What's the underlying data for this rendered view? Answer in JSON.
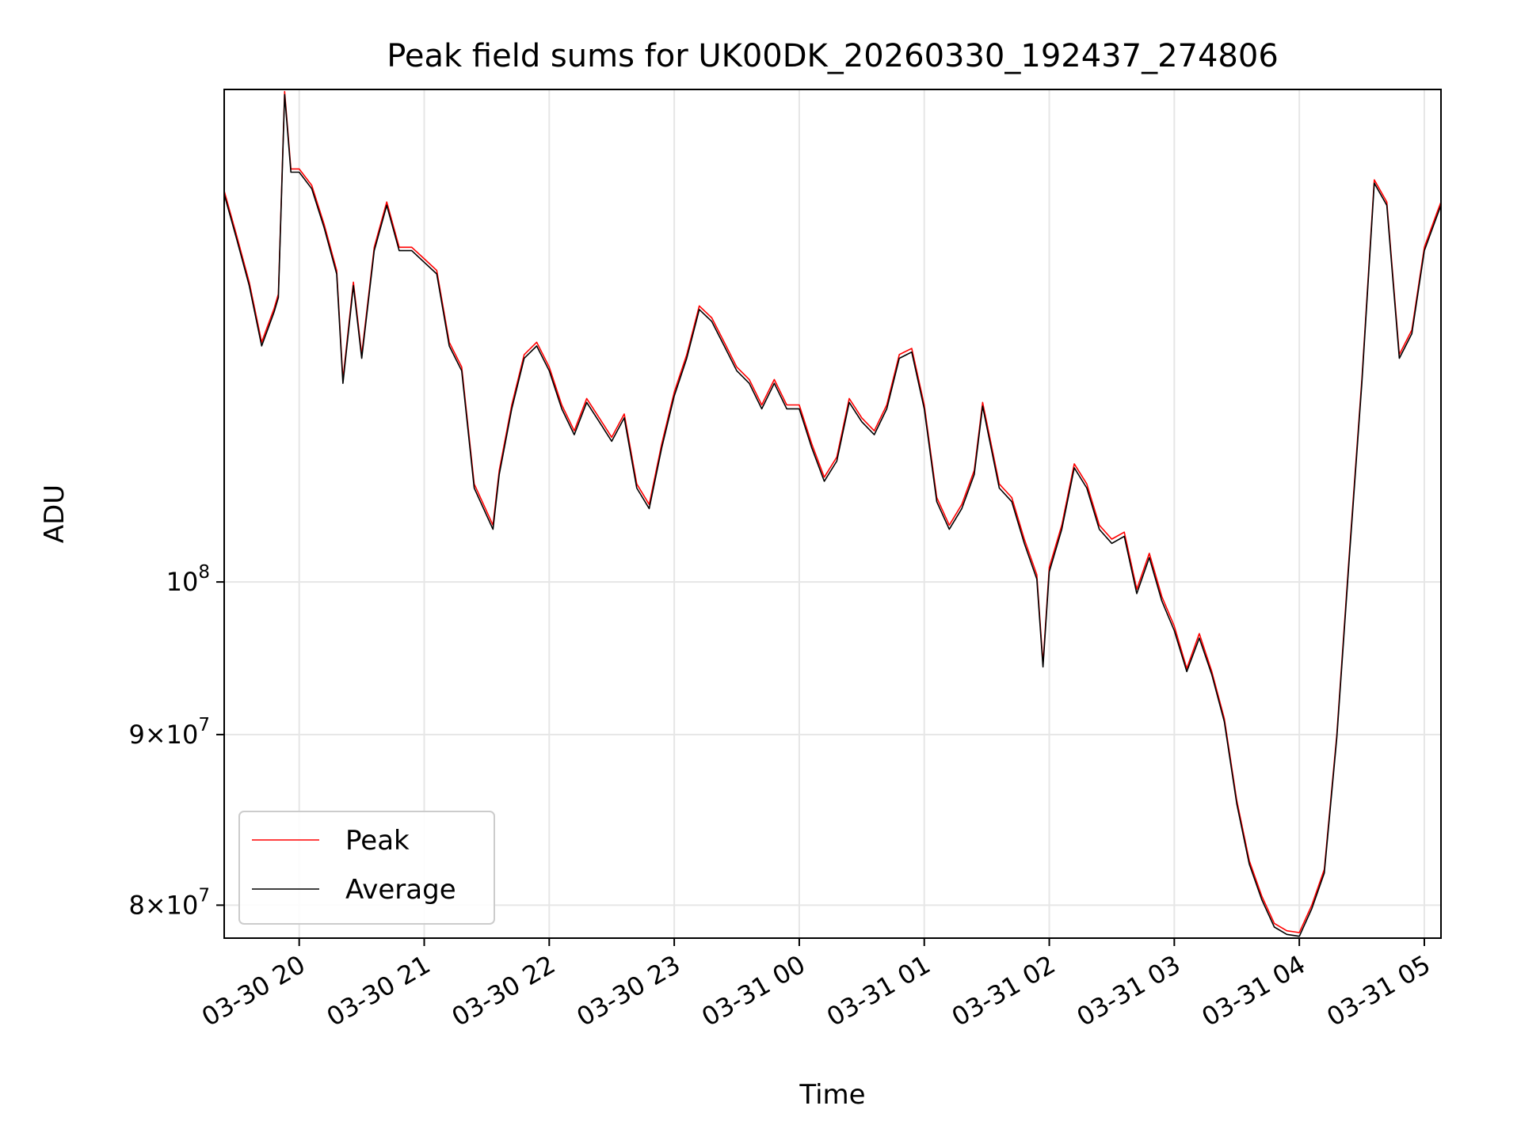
{
  "chart_data": {
    "type": "line",
    "title": "Peak field sums for UK00DK_20260330_192437_274806",
    "xlabel": "Time",
    "ylabel": "ADU",
    "yscale": "log",
    "grid": true,
    "legend_position": "lower-left",
    "x_tick_labels": [
      "03-30 20",
      "03-30 21",
      "03-30 22",
      "03-30 23",
      "03-31 00",
      "03-31 01",
      "03-31 02",
      "03-31 03",
      "03-31 04",
      "03-31 05"
    ],
    "y_ticks": [
      {
        "value": 80000000,
        "mantissa": "8",
        "base": "10",
        "exp": "7",
        "label": "8 × 10^7"
      },
      {
        "value": 90000000,
        "mantissa": "9",
        "base": "10",
        "exp": "7",
        "label": "9 × 10^7"
      },
      {
        "value": 100000000,
        "mantissa": "",
        "base": "10",
        "exp": "8",
        "label": "10^8"
      }
    ],
    "xlim": [
      "2026-03-30 19:24",
      "2026-03-31 05:08"
    ],
    "ylim": [
      78200000,
      140500000
    ],
    "colors": {
      "Peak": "#ff0000",
      "Average": "#000000"
    },
    "series": [
      {
        "name": "Peak",
        "points": [
          [
            "2026-03-30 19:24",
            131.0
          ],
          [
            "2026-03-30 19:30",
            127.0
          ],
          [
            "2026-03-30 19:36",
            123.0
          ],
          [
            "2026-03-30 19:42",
            118.0
          ],
          [
            "2026-03-30 19:48",
            120.8
          ],
          [
            "2026-03-30 19:50",
            122.0
          ],
          [
            "2026-03-30 19:53",
            140.3
          ],
          [
            "2026-03-30 19:56",
            133.0
          ],
          [
            "2026-03-30 20:00",
            133.0
          ],
          [
            "2026-03-30 20:06",
            131.5
          ],
          [
            "2026-03-30 20:12",
            128.0
          ],
          [
            "2026-03-30 20:18",
            124.0
          ],
          [
            "2026-03-30 20:21",
            115.0
          ],
          [
            "2026-03-30 20:26",
            123.0
          ],
          [
            "2026-03-30 20:30",
            117.0
          ],
          [
            "2026-03-30 20:36",
            126.0
          ],
          [
            "2026-03-30 20:42",
            130.0
          ],
          [
            "2026-03-30 20:48",
            126.0
          ],
          [
            "2026-03-30 20:54",
            126.0
          ],
          [
            "2026-03-30 21:00",
            125.0
          ],
          [
            "2026-03-30 21:06",
            124.0
          ],
          [
            "2026-03-30 21:12",
            118.0
          ],
          [
            "2026-03-30 21:18",
            116.0
          ],
          [
            "2026-03-30 21:24",
            107.0
          ],
          [
            "2026-03-30 21:33",
            104.0
          ],
          [
            "2026-03-30 21:36",
            108.0
          ],
          [
            "2026-03-30 21:42",
            113.0
          ],
          [
            "2026-03-30 21:48",
            117.0
          ],
          [
            "2026-03-30 21:54",
            118.0
          ],
          [
            "2026-03-30 22:00",
            116.0
          ],
          [
            "2026-03-30 22:06",
            113.0
          ],
          [
            "2026-03-30 22:12",
            111.0
          ],
          [
            "2026-03-30 22:18",
            113.5
          ],
          [
            "2026-03-30 22:24",
            112.0
          ],
          [
            "2026-03-30 22:30",
            110.5
          ],
          [
            "2026-03-30 22:36",
            112.3
          ],
          [
            "2026-03-30 22:42",
            107.0
          ],
          [
            "2026-03-30 22:48",
            105.5
          ],
          [
            "2026-03-30 22:54",
            110.0
          ],
          [
            "2026-03-30 23:00",
            114.0
          ],
          [
            "2026-03-30 23:06",
            117.0
          ],
          [
            "2026-03-30 23:12",
            121.0
          ],
          [
            "2026-03-30 23:18",
            120.0
          ],
          [
            "2026-03-30 23:24",
            118.0
          ],
          [
            "2026-03-30 23:30",
            116.0
          ],
          [
            "2026-03-30 23:36",
            115.0
          ],
          [
            "2026-03-30 23:42",
            113.0
          ],
          [
            "2026-03-30 23:48",
            115.0
          ],
          [
            "2026-03-30 23:54",
            113.0
          ],
          [
            "2026-03-31 00:00",
            113.0
          ],
          [
            "2026-03-31 00:06",
            110.0
          ],
          [
            "2026-03-31 00:12",
            107.5
          ],
          [
            "2026-03-31 00:18",
            109.0
          ],
          [
            "2026-03-31 00:24",
            113.5
          ],
          [
            "2026-03-31 00:30",
            112.0
          ],
          [
            "2026-03-31 00:36",
            111.0
          ],
          [
            "2026-03-31 00:42",
            113.0
          ],
          [
            "2026-03-31 00:48",
            117.0
          ],
          [
            "2026-03-31 00:54",
            117.5
          ],
          [
            "2026-03-31 01:00",
            113.0
          ],
          [
            "2026-03-31 01:06",
            106.0
          ],
          [
            "2026-03-31 01:12",
            104.0
          ],
          [
            "2026-03-31 01:18",
            105.5
          ],
          [
            "2026-03-31 01:24",
            108.0
          ],
          [
            "2026-03-31 01:28",
            113.2
          ],
          [
            "2026-03-31 01:36",
            107.0
          ],
          [
            "2026-03-31 01:42",
            106.0
          ],
          [
            "2026-03-31 01:48",
            103.0
          ],
          [
            "2026-03-31 01:54",
            100.5
          ],
          [
            "2026-03-31 01:57",
            94.5
          ],
          [
            "2026-03-31 02:00",
            101.0
          ],
          [
            "2026-03-31 02:06",
            104.0
          ],
          [
            "2026-03-31 02:12",
            108.5
          ],
          [
            "2026-03-31 02:18",
            107.0
          ],
          [
            "2026-03-31 02:24",
            104.0
          ],
          [
            "2026-03-31 02:30",
            103.0
          ],
          [
            "2026-03-31 02:36",
            103.5
          ],
          [
            "2026-03-31 02:42",
            99.5
          ],
          [
            "2026-03-31 02:48",
            102.0
          ],
          [
            "2026-03-31 02:54",
            99.0
          ],
          [
            "2026-03-31 03:00",
            97.0
          ],
          [
            "2026-03-31 03:06",
            94.2
          ],
          [
            "2026-03-31 03:12",
            96.5
          ],
          [
            "2026-03-31 03:18",
            94.0
          ],
          [
            "2026-03-31 03:24",
            91.0
          ],
          [
            "2026-03-31 03:30",
            86.0
          ],
          [
            "2026-03-31 03:36",
            82.5
          ],
          [
            "2026-03-31 03:42",
            80.5
          ],
          [
            "2026-03-31 03:48",
            79.0
          ],
          [
            "2026-03-31 03:54",
            78.6
          ],
          [
            "2026-03-31 04:00",
            78.5
          ],
          [
            "2026-03-31 04:06",
            80.0
          ],
          [
            "2026-03-31 04:12",
            82.0
          ],
          [
            "2026-03-31 04:18",
            90.0
          ],
          [
            "2026-03-31 04:24",
            102.0
          ],
          [
            "2026-03-31 04:30",
            115.0
          ],
          [
            "2026-03-31 04:36",
            132.0
          ],
          [
            "2026-03-31 04:42",
            130.0
          ],
          [
            "2026-03-31 04:48",
            117.0
          ],
          [
            "2026-03-31 04:54",
            119.0
          ],
          [
            "2026-03-31 05:00",
            126.0
          ],
          [
            "2026-03-31 05:06",
            129.0
          ],
          [
            "2026-03-31 05:08",
            130.0
          ]
        ]
      },
      {
        "name": "Average",
        "points": [
          [
            "2026-03-30 19:24",
            130.7
          ],
          [
            "2026-03-30 19:30",
            126.7
          ],
          [
            "2026-03-30 19:36",
            122.7
          ],
          [
            "2026-03-30 19:42",
            117.7
          ],
          [
            "2026-03-30 19:48",
            120.5
          ],
          [
            "2026-03-30 19:50",
            121.7
          ],
          [
            "2026-03-30 19:53",
            140.0
          ],
          [
            "2026-03-30 19:56",
            132.7
          ],
          [
            "2026-03-30 20:00",
            132.7
          ],
          [
            "2026-03-30 20:06",
            131.2
          ],
          [
            "2026-03-30 20:12",
            127.7
          ],
          [
            "2026-03-30 20:18",
            123.7
          ],
          [
            "2026-03-30 20:21",
            114.7
          ],
          [
            "2026-03-30 20:26",
            122.7
          ],
          [
            "2026-03-30 20:30",
            116.7
          ],
          [
            "2026-03-30 20:36",
            125.7
          ],
          [
            "2026-03-30 20:42",
            129.7
          ],
          [
            "2026-03-30 20:48",
            125.7
          ],
          [
            "2026-03-30 20:54",
            125.7
          ],
          [
            "2026-03-30 21:00",
            124.7
          ],
          [
            "2026-03-30 21:06",
            123.7
          ],
          [
            "2026-03-30 21:12",
            117.7
          ],
          [
            "2026-03-30 21:18",
            115.7
          ],
          [
            "2026-03-30 21:24",
            106.7
          ],
          [
            "2026-03-30 21:33",
            103.7
          ],
          [
            "2026-03-30 21:36",
            107.7
          ],
          [
            "2026-03-30 21:42",
            112.7
          ],
          [
            "2026-03-30 21:48",
            116.7
          ],
          [
            "2026-03-30 21:54",
            117.7
          ],
          [
            "2026-03-30 22:00",
            115.7
          ],
          [
            "2026-03-30 22:06",
            112.7
          ],
          [
            "2026-03-30 22:12",
            110.7
          ],
          [
            "2026-03-30 22:18",
            113.2
          ],
          [
            "2026-03-30 22:24",
            111.7
          ],
          [
            "2026-03-30 22:30",
            110.2
          ],
          [
            "2026-03-30 22:36",
            112.0
          ],
          [
            "2026-03-30 22:42",
            106.7
          ],
          [
            "2026-03-30 22:48",
            105.2
          ],
          [
            "2026-03-30 22:54",
            109.7
          ],
          [
            "2026-03-30 23:00",
            113.7
          ],
          [
            "2026-03-30 23:06",
            116.7
          ],
          [
            "2026-03-30 23:12",
            120.7
          ],
          [
            "2026-03-30 23:18",
            119.7
          ],
          [
            "2026-03-30 23:24",
            117.7
          ],
          [
            "2026-03-30 23:30",
            115.7
          ],
          [
            "2026-03-30 23:36",
            114.7
          ],
          [
            "2026-03-30 23:42",
            112.7
          ],
          [
            "2026-03-30 23:48",
            114.7
          ],
          [
            "2026-03-30 23:54",
            112.7
          ],
          [
            "2026-03-31 00:00",
            112.7
          ],
          [
            "2026-03-31 00:06",
            109.7
          ],
          [
            "2026-03-31 00:12",
            107.2
          ],
          [
            "2026-03-31 00:18",
            108.7
          ],
          [
            "2026-03-31 00:24",
            113.2
          ],
          [
            "2026-03-31 00:30",
            111.7
          ],
          [
            "2026-03-31 00:36",
            110.7
          ],
          [
            "2026-03-31 00:42",
            112.7
          ],
          [
            "2026-03-31 00:48",
            116.7
          ],
          [
            "2026-03-31 00:54",
            117.2
          ],
          [
            "2026-03-31 01:00",
            112.7
          ],
          [
            "2026-03-31 01:06",
            105.7
          ],
          [
            "2026-03-31 01:12",
            103.7
          ],
          [
            "2026-03-31 01:18",
            105.2
          ],
          [
            "2026-03-31 01:24",
            107.7
          ],
          [
            "2026-03-31 01:28",
            112.9
          ],
          [
            "2026-03-31 01:36",
            106.7
          ],
          [
            "2026-03-31 01:42",
            105.7
          ],
          [
            "2026-03-31 01:48",
            102.7
          ],
          [
            "2026-03-31 01:54",
            100.2
          ],
          [
            "2026-03-31 01:57",
            94.3
          ],
          [
            "2026-03-31 02:00",
            100.7
          ],
          [
            "2026-03-31 02:06",
            103.7
          ],
          [
            "2026-03-31 02:12",
            108.2
          ],
          [
            "2026-03-31 02:18",
            106.7
          ],
          [
            "2026-03-31 02:24",
            103.7
          ],
          [
            "2026-03-31 02:30",
            102.7
          ],
          [
            "2026-03-31 02:36",
            103.2
          ],
          [
            "2026-03-31 02:42",
            99.2
          ],
          [
            "2026-03-31 02:48",
            101.7
          ],
          [
            "2026-03-31 02:54",
            98.7
          ],
          [
            "2026-03-31 03:00",
            96.7
          ],
          [
            "2026-03-31 03:06",
            94.0
          ],
          [
            "2026-03-31 03:12",
            96.2
          ],
          [
            "2026-03-31 03:18",
            93.8
          ],
          [
            "2026-03-31 03:24",
            90.8
          ],
          [
            "2026-03-31 03:30",
            85.8
          ],
          [
            "2026-03-31 03:36",
            82.3
          ],
          [
            "2026-03-31 03:42",
            80.3
          ],
          [
            "2026-03-31 03:48",
            78.8
          ],
          [
            "2026-03-31 03:54",
            78.4
          ],
          [
            "2026-03-31 04:00",
            78.3
          ],
          [
            "2026-03-31 04:06",
            79.8
          ],
          [
            "2026-03-31 04:12",
            81.8
          ],
          [
            "2026-03-31 04:18",
            89.8
          ],
          [
            "2026-03-31 04:24",
            101.7
          ],
          [
            "2026-03-31 04:30",
            114.7
          ],
          [
            "2026-03-31 04:36",
            131.7
          ],
          [
            "2026-03-31 04:42",
            129.7
          ],
          [
            "2026-03-31 04:48",
            116.7
          ],
          [
            "2026-03-31 04:54",
            118.7
          ],
          [
            "2026-03-31 05:00",
            125.7
          ],
          [
            "2026-03-31 05:06",
            128.7
          ],
          [
            "2026-03-31 05:08",
            129.7
          ]
        ]
      }
    ],
    "y_unit_note": "point y values are in millions of ADU"
  }
}
